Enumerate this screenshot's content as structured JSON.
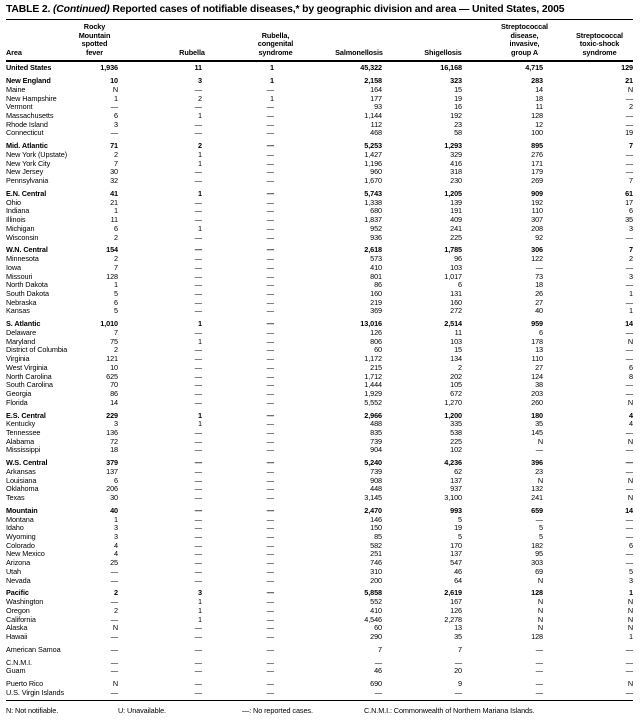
{
  "title": {
    "label": "TABLE 2.",
    "continued": "(Continued)",
    "text": "Reported cases of notifiable diseases,* by geographic division and area — United States, 2005"
  },
  "table": {
    "area_header": "Area",
    "column_headers": [
      [
        "Rocky",
        "Mountain",
        "spotted",
        "fever"
      ],
      [
        "Rubella"
      ],
      [
        "Rubella,",
        "congenital",
        "syndrome"
      ],
      [
        "Salmonellosis"
      ],
      [
        "Shigellosis"
      ],
      [
        "Streptococcal",
        "disease,",
        "invasive,",
        "group A"
      ],
      [
        "Streptococcal",
        "toxic-shock",
        "syndrome"
      ]
    ],
    "sections": [
      {
        "rows": [
          {
            "area": "United States",
            "bold": true,
            "values": [
              "1,936",
              "11",
              "1",
              "45,322",
              "16,168",
              "4,715",
              "129"
            ]
          }
        ]
      },
      {
        "rows": [
          {
            "area": "New England",
            "bold": true,
            "values": [
              "10",
              "3",
              "1",
              "2,158",
              "323",
              "283",
              "21"
            ]
          },
          {
            "area": "Maine",
            "bold": false,
            "values": [
              "N",
              "—",
              "—",
              "164",
              "15",
              "14",
              "N"
            ]
          },
          {
            "area": "New Hampshire",
            "bold": false,
            "values": [
              "1",
              "2",
              "1",
              "177",
              "19",
              "18",
              "—"
            ]
          },
          {
            "area": "Vermont",
            "bold": false,
            "values": [
              "—",
              "—",
              "—",
              "93",
              "16",
              "11",
              "2"
            ]
          },
          {
            "area": "Massachusetts",
            "bold": false,
            "values": [
              "6",
              "1",
              "—",
              "1,144",
              "192",
              "128",
              "—"
            ]
          },
          {
            "area": "Rhode Island",
            "bold": false,
            "values": [
              "3",
              "—",
              "—",
              "112",
              "23",
              "12",
              "—"
            ]
          },
          {
            "area": "Connecticut",
            "bold": false,
            "values": [
              "—",
              "—",
              "—",
              "468",
              "58",
              "100",
              "19"
            ]
          }
        ]
      },
      {
        "rows": [
          {
            "area": "Mid. Atlantic",
            "bold": true,
            "values": [
              "71",
              "2",
              "—",
              "5,253",
              "1,293",
              "895",
              "7"
            ]
          },
          {
            "area": "New York (Upstate)",
            "bold": false,
            "values": [
              "2",
              "1",
              "—",
              "1,427",
              "329",
              "276",
              "—"
            ]
          },
          {
            "area": "New York City",
            "bold": false,
            "values": [
              "7",
              "1",
              "—",
              "1,196",
              "416",
              "171",
              "—"
            ]
          },
          {
            "area": "New Jersey",
            "bold": false,
            "values": [
              "30",
              "—",
              "—",
              "960",
              "318",
              "179",
              "—"
            ]
          },
          {
            "area": "Pennsylvania",
            "bold": false,
            "values": [
              "32",
              "—",
              "—",
              "1,670",
              "230",
              "269",
              "7"
            ]
          }
        ]
      },
      {
        "rows": [
          {
            "area": "E.N. Central",
            "bold": true,
            "values": [
              "41",
              "1",
              "—",
              "5,743",
              "1,205",
              "909",
              "61"
            ]
          },
          {
            "area": "Ohio",
            "bold": false,
            "values": [
              "21",
              "—",
              "—",
              "1,338",
              "139",
              "192",
              "17"
            ]
          },
          {
            "area": "Indiana",
            "bold": false,
            "values": [
              "1",
              "—",
              "—",
              "680",
              "191",
              "110",
              "6"
            ]
          },
          {
            "area": "Illinois",
            "bold": false,
            "values": [
              "11",
              "—",
              "—",
              "1,837",
              "409",
              "307",
              "35"
            ]
          },
          {
            "area": "Michigan",
            "bold": false,
            "values": [
              "6",
              "1",
              "—",
              "952",
              "241",
              "208",
              "3"
            ]
          },
          {
            "area": "Wisconsin",
            "bold": false,
            "values": [
              "2",
              "—",
              "—",
              "936",
              "225",
              "92",
              "—"
            ]
          }
        ]
      },
      {
        "rows": [
          {
            "area": "W.N. Central",
            "bold": true,
            "values": [
              "154",
              "—",
              "—",
              "2,618",
              "1,785",
              "306",
              "7"
            ]
          },
          {
            "area": "Minnesota",
            "bold": false,
            "values": [
              "2",
              "—",
              "—",
              "573",
              "96",
              "122",
              "2"
            ]
          },
          {
            "area": "Iowa",
            "bold": false,
            "values": [
              "7",
              "—",
              "—",
              "410",
              "103",
              "—",
              "—"
            ]
          },
          {
            "area": "Missouri",
            "bold": false,
            "values": [
              "128",
              "—",
              "—",
              "801",
              "1,017",
              "73",
              "3"
            ]
          },
          {
            "area": "North Dakota",
            "bold": false,
            "values": [
              "1",
              "—",
              "—",
              "86",
              "6",
              "18",
              "—"
            ]
          },
          {
            "area": "South Dakota",
            "bold": false,
            "values": [
              "5",
              "—",
              "—",
              "160",
              "131",
              "26",
              "1"
            ]
          },
          {
            "area": "Nebraska",
            "bold": false,
            "values": [
              "6",
              "—",
              "—",
              "219",
              "160",
              "27",
              "—"
            ]
          },
          {
            "area": "Kansas",
            "bold": false,
            "values": [
              "5",
              "—",
              "—",
              "369",
              "272",
              "40",
              "1"
            ]
          }
        ]
      },
      {
        "rows": [
          {
            "area": "S. Atlantic",
            "bold": true,
            "values": [
              "1,010",
              "1",
              "—",
              "13,016",
              "2,514",
              "959",
              "14"
            ]
          },
          {
            "area": "Delaware",
            "bold": false,
            "values": [
              "7",
              "—",
              "—",
              "126",
              "11",
              "6",
              "—"
            ]
          },
          {
            "area": "Maryland",
            "bold": false,
            "values": [
              "75",
              "1",
              "—",
              "806",
              "103",
              "178",
              "N"
            ]
          },
          {
            "area": "District of Columbia",
            "bold": false,
            "values": [
              "2",
              "—",
              "—",
              "60",
              "15",
              "13",
              "—"
            ]
          },
          {
            "area": "Virginia",
            "bold": false,
            "values": [
              "121",
              "—",
              "—",
              "1,172",
              "134",
              "110",
              "—"
            ]
          },
          {
            "area": "West Virginia",
            "bold": false,
            "values": [
              "10",
              "—",
              "—",
              "215",
              "2",
              "27",
              "6"
            ]
          },
          {
            "area": "North Carolina",
            "bold": false,
            "values": [
              "625",
              "—",
              "—",
              "1,712",
              "202",
              "124",
              "8"
            ]
          },
          {
            "area": "South Carolina",
            "bold": false,
            "values": [
              "70",
              "—",
              "—",
              "1,444",
              "105",
              "38",
              "—"
            ]
          },
          {
            "area": "Georgia",
            "bold": false,
            "values": [
              "86",
              "—",
              "—",
              "1,929",
              "672",
              "203",
              "—"
            ]
          },
          {
            "area": "Florida",
            "bold": false,
            "values": [
              "14",
              "—",
              "—",
              "5,552",
              "1,270",
              "260",
              "N"
            ]
          }
        ]
      },
      {
        "rows": [
          {
            "area": "E.S. Central",
            "bold": true,
            "values": [
              "229",
              "1",
              "—",
              "2,966",
              "1,200",
              "180",
              "4"
            ]
          },
          {
            "area": "Kentucky",
            "bold": false,
            "values": [
              "3",
              "1",
              "—",
              "488",
              "335",
              "35",
              "4"
            ]
          },
          {
            "area": "Tennessee",
            "bold": false,
            "values": [
              "136",
              "—",
              "—",
              "835",
              "538",
              "145",
              "—"
            ]
          },
          {
            "area": "Alabama",
            "bold": false,
            "values": [
              "72",
              "—",
              "—",
              "739",
              "225",
              "N",
              "N"
            ]
          },
          {
            "area": "Mississippi",
            "bold": false,
            "values": [
              "18",
              "—",
              "—",
              "904",
              "102",
              "—",
              "—"
            ]
          }
        ]
      },
      {
        "rows": [
          {
            "area": "W.S. Central",
            "bold": true,
            "values": [
              "379",
              "—",
              "—",
              "5,240",
              "4,236",
              "396",
              "—"
            ]
          },
          {
            "area": "Arkansas",
            "bold": false,
            "values": [
              "137",
              "—",
              "—",
              "739",
              "62",
              "23",
              "—"
            ]
          },
          {
            "area": "Louisiana",
            "bold": false,
            "values": [
              "6",
              "—",
              "—",
              "908",
              "137",
              "N",
              "N"
            ]
          },
          {
            "area": "Oklahoma",
            "bold": false,
            "values": [
              "206",
              "—",
              "—",
              "448",
              "937",
              "132",
              "—"
            ]
          },
          {
            "area": "Texas",
            "bold": false,
            "values": [
              "30",
              "—",
              "—",
              "3,145",
              "3,100",
              "241",
              "N"
            ]
          }
        ]
      },
      {
        "rows": [
          {
            "area": "Mountain",
            "bold": true,
            "values": [
              "40",
              "—",
              "—",
              "2,470",
              "993",
              "659",
              "14"
            ]
          },
          {
            "area": "Montana",
            "bold": false,
            "values": [
              "1",
              "—",
              "—",
              "146",
              "5",
              "—",
              "—"
            ]
          },
          {
            "area": "Idaho",
            "bold": false,
            "values": [
              "3",
              "—",
              "—",
              "150",
              "19",
              "5",
              "—"
            ]
          },
          {
            "area": "Wyoming",
            "bold": false,
            "values": [
              "3",
              "—",
              "—",
              "85",
              "5",
              "5",
              "—"
            ]
          },
          {
            "area": "Colorado",
            "bold": false,
            "values": [
              "4",
              "—",
              "—",
              "582",
              "170",
              "182",
              "6"
            ]
          },
          {
            "area": "New Mexico",
            "bold": false,
            "values": [
              "4",
              "—",
              "—",
              "251",
              "137",
              "95",
              "—"
            ]
          },
          {
            "area": "Arizona",
            "bold": false,
            "values": [
              "25",
              "—",
              "—",
              "746",
              "547",
              "303",
              "—"
            ]
          },
          {
            "area": "Utah",
            "bold": false,
            "values": [
              "—",
              "—",
              "—",
              "310",
              "46",
              "69",
              "5"
            ]
          },
          {
            "area": "Nevada",
            "bold": false,
            "values": [
              "—",
              "—",
              "—",
              "200",
              "64",
              "N",
              "3"
            ]
          }
        ]
      },
      {
        "rows": [
          {
            "area": "Pacific",
            "bold": true,
            "values": [
              "2",
              "3",
              "—",
              "5,858",
              "2,619",
              "128",
              "1"
            ]
          },
          {
            "area": "Washington",
            "bold": false,
            "values": [
              "—",
              "1",
              "—",
              "552",
              "167",
              "N",
              "N"
            ]
          },
          {
            "area": "Oregon",
            "bold": false,
            "values": [
              "2",
              "1",
              "—",
              "410",
              "126",
              "N",
              "N"
            ]
          },
          {
            "area": "California",
            "bold": false,
            "values": [
              "—",
              "1",
              "—",
              "4,546",
              "2,278",
              "N",
              "N"
            ]
          },
          {
            "area": "Alaska",
            "bold": false,
            "values": [
              "N",
              "—",
              "—",
              "60",
              "13",
              "N",
              "N"
            ]
          },
          {
            "area": "Hawaii",
            "bold": false,
            "values": [
              "—",
              "—",
              "—",
              "290",
              "35",
              "128",
              "1"
            ]
          }
        ]
      },
      {
        "rows": [
          {
            "area": "American Samoa",
            "bold": false,
            "values": [
              "—",
              "—",
              "—",
              "7",
              "7",
              "—",
              "—"
            ]
          }
        ]
      },
      {
        "rows": [
          {
            "area": "C.N.M.I.",
            "bold": false,
            "values": [
              "—",
              "—",
              "—",
              "—",
              "—",
              "—",
              "—"
            ]
          },
          {
            "area": "Guam",
            "bold": false,
            "values": [
              "—",
              "—",
              "—",
              "46",
              "20",
              "—",
              "—"
            ]
          }
        ]
      },
      {
        "rows": [
          {
            "area": "Puerto Rico",
            "bold": false,
            "values": [
              "N",
              "—",
              "—",
              "690",
              "9",
              "—",
              "N"
            ]
          },
          {
            "area": "U.S. Virgin Islands",
            "bold": false,
            "values": [
              "—",
              "—",
              "—",
              "—",
              "—",
              "—",
              "—"
            ]
          }
        ]
      }
    ]
  },
  "footnotes": [
    "N: Not notifiable.",
    "U: Unavailable.",
    "—: No reported cases.",
    "C.N.M.I.: Commonwealth of Northern Mariana Islands."
  ]
}
